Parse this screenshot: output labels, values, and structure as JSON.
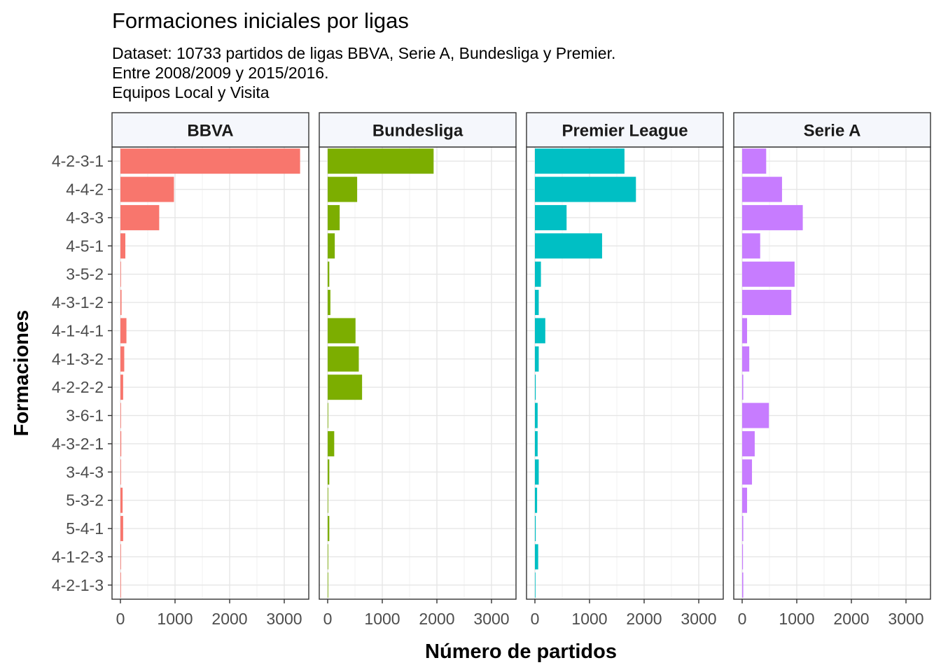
{
  "chart_data": {
    "type": "bar",
    "orientation": "horizontal",
    "facet": "league",
    "title": "Formaciones iniciales por ligas",
    "subtitle": [
      "Dataset: 10733 partidos de ligas BBVA, Serie A, Bundesliga y Premier.",
      "Entre 2008/2009 y 2015/2016.",
      "Equipos Local y Visita"
    ],
    "xlabel": "Número de partidos",
    "ylabel": "Formaciones",
    "xlim": [
      0,
      3450
    ],
    "xticks": [
      0,
      1000,
      2000,
      3000
    ],
    "xtick_labels": [
      "0",
      "1000",
      "2000",
      "3000"
    ],
    "grid": true,
    "legend": "none",
    "categories": [
      "4-2-3-1",
      "4-4-2",
      "4-3-3",
      "4-5-1",
      "3-5-2",
      "4-3-1-2",
      "4-1-4-1",
      "4-1-3-2",
      "4-2-2-2",
      "3-6-1",
      "4-3-2-1",
      "3-4-3",
      "5-3-2",
      "5-4-1",
      "4-1-2-3",
      "4-2-1-3"
    ],
    "panels": [
      {
        "name": "BBVA",
        "color": "#F8766D",
        "values": [
          3290,
          980,
          710,
          90,
          10,
          20,
          110,
          70,
          50,
          5,
          15,
          10,
          40,
          50,
          10,
          10
        ]
      },
      {
        "name": "Bundesliga",
        "color": "#7CAE00",
        "values": [
          1940,
          540,
          220,
          130,
          30,
          50,
          510,
          570,
          630,
          10,
          120,
          30,
          10,
          30,
          10,
          10
        ]
      },
      {
        "name": "Premier League",
        "color": "#00BFC4",
        "values": [
          1640,
          1850,
          580,
          1230,
          110,
          70,
          190,
          70,
          15,
          50,
          50,
          70,
          40,
          15,
          60,
          10
        ]
      },
      {
        "name": "Serie A",
        "color": "#C77CFF",
        "values": [
          440,
          730,
          1110,
          330,
          960,
          900,
          90,
          130,
          20,
          490,
          230,
          180,
          90,
          20,
          15,
          20
        ]
      }
    ]
  }
}
